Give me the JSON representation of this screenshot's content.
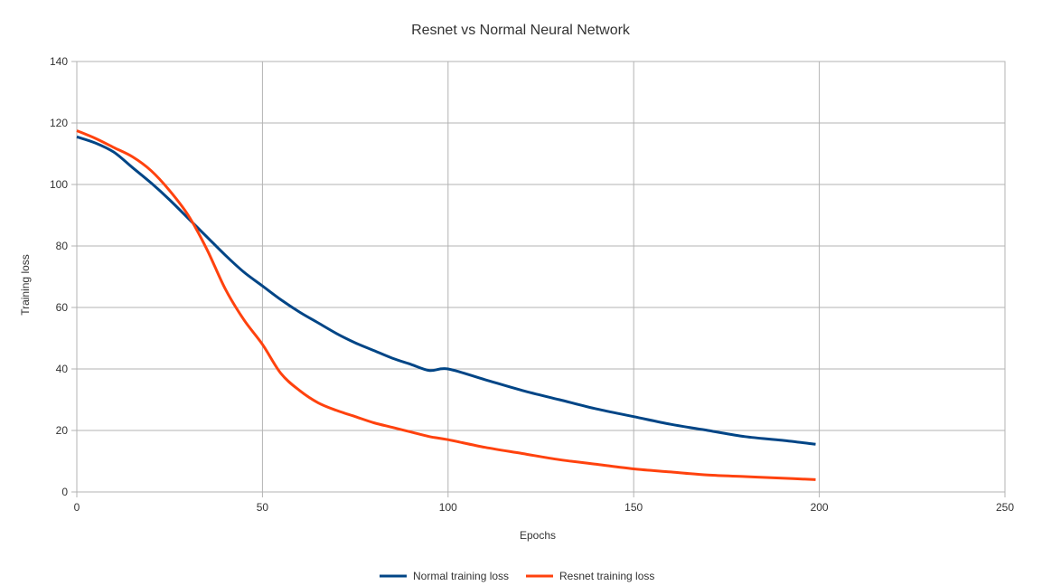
{
  "chart_data": {
    "type": "line",
    "title": "Resnet vs Normal Neural Network",
    "xlabel": "Epochs",
    "ylabel": "Training loss",
    "xlim": [
      0,
      250
    ],
    "ylim": [
      0,
      140
    ],
    "xticks": [
      0,
      50,
      100,
      150,
      200,
      250
    ],
    "yticks": [
      0,
      20,
      40,
      60,
      80,
      100,
      120,
      140
    ],
    "grid": true,
    "legend_position": "bottom",
    "series": [
      {
        "name": "Normal training loss",
        "color": "#004586",
        "x": [
          0,
          5,
          10,
          15,
          20,
          25,
          30,
          35,
          40,
          45,
          50,
          55,
          60,
          65,
          70,
          75,
          80,
          85,
          90,
          95,
          100,
          110,
          120,
          130,
          140,
          150,
          160,
          170,
          180,
          190,
          199
        ],
        "y": [
          115.5,
          113.5,
          110.5,
          105.5,
          100.5,
          95,
          89,
          83,
          77,
          71.5,
          67,
          62.5,
          58.5,
          55,
          51.5,
          48.5,
          46,
          43.5,
          41.5,
          39.5,
          40,
          36.5,
          33,
          30,
          27,
          24.5,
          22,
          20,
          18,
          16.8,
          15.5
        ]
      },
      {
        "name": "Resnet training loss",
        "color": "#ff420e",
        "x": [
          0,
          5,
          10,
          15,
          20,
          25,
          30,
          35,
          40,
          45,
          50,
          55,
          60,
          65,
          70,
          75,
          80,
          85,
          90,
          95,
          100,
          110,
          120,
          130,
          140,
          150,
          160,
          170,
          180,
          190,
          199
        ],
        "y": [
          117.5,
          115,
          112,
          109,
          104.5,
          98,
          90,
          79,
          66,
          56,
          48,
          38.5,
          33,
          29,
          26.5,
          24.5,
          22.5,
          21,
          19.5,
          18,
          17,
          14.5,
          12.5,
          10.5,
          9,
          7.5,
          6.5,
          5.5,
          5,
          4.5,
          4
        ]
      }
    ]
  }
}
